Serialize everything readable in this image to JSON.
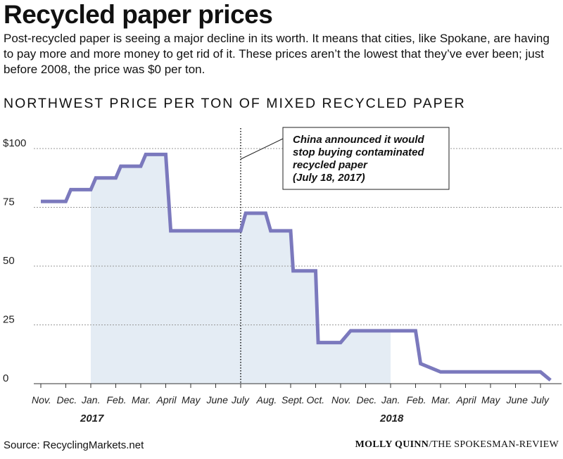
{
  "header": {
    "title": "Recycled paper prices",
    "description": "Post-recycled paper is seeing a major decline in its worth. It means that cities, like Spokane, are having to pay more and more money to get rid of it. These prices aren’t the lowest that they’ve ever been; just before 2008, the price was $0 per ton."
  },
  "footer": {
    "source": "Source: RecyclingMarkets.net",
    "credit_author": "MOLLY QUINN",
    "credit_org": "/THE SPOKESMAN-REVIEW"
  },
  "colors": {
    "line": "#7b79bd",
    "fill": "#e4ecf4",
    "grid": "#999999"
  },
  "chart_data": {
    "type": "line",
    "title": "NORTHWEST PRICE PER TON OF MIXED RECYCLED PAPER",
    "xlabel": "",
    "ylabel": "",
    "ylim": [
      0,
      100
    ],
    "yticks": [
      {
        "value": 100,
        "label": "$100"
      },
      {
        "value": 75,
        "label": "75"
      },
      {
        "value": 50,
        "label": "50"
      },
      {
        "value": 25,
        "label": "25"
      },
      {
        "value": 0,
        "label": "0"
      }
    ],
    "month_labels": [
      "Nov.",
      "Dec.",
      "Jan.",
      "Feb.",
      "Mar.",
      "April",
      "May",
      "June",
      "July",
      "Aug.",
      "Sept.",
      "Oct.",
      "Nov.",
      "Dec.",
      "Jan.",
      "Feb.",
      "Mar.",
      "April",
      "May",
      "June",
      "July"
    ],
    "year_labels": [
      {
        "label": "2017",
        "month_index": 2
      },
      {
        "label": "2018",
        "month_index": 14
      }
    ],
    "series": [
      {
        "points": [
          [
            0,
            77.5
          ],
          [
            1,
            77.5
          ],
          [
            1.2,
            82.5
          ],
          [
            2,
            82.5
          ],
          [
            2.2,
            87.5
          ],
          [
            3,
            87.5
          ],
          [
            3.2,
            92.5
          ],
          [
            4,
            92.5
          ],
          [
            4.2,
            97.5
          ],
          [
            5,
            97.5
          ],
          [
            5.2,
            65
          ],
          [
            8,
            65
          ],
          [
            8.2,
            72.5
          ],
          [
            9,
            72.5
          ],
          [
            9.2,
            65
          ],
          [
            10,
            65
          ],
          [
            10.1,
            48
          ],
          [
            11,
            48
          ],
          [
            11.1,
            17.5
          ],
          [
            12,
            17.5
          ],
          [
            12.4,
            22.5
          ],
          [
            14,
            22.5
          ],
          [
            15,
            22.5
          ],
          [
            15.2,
            8.5
          ],
          [
            16,
            5
          ],
          [
            20,
            5
          ],
          [
            20.4,
            1.5
          ]
        ]
      }
    ],
    "shaded_range": [
      2,
      14
    ],
    "annotation": {
      "text": [
        "China announced it would",
        "stop buying contaminated",
        "recycled paper",
        "(July 18, 2017)"
      ],
      "month_index": 8
    }
  }
}
